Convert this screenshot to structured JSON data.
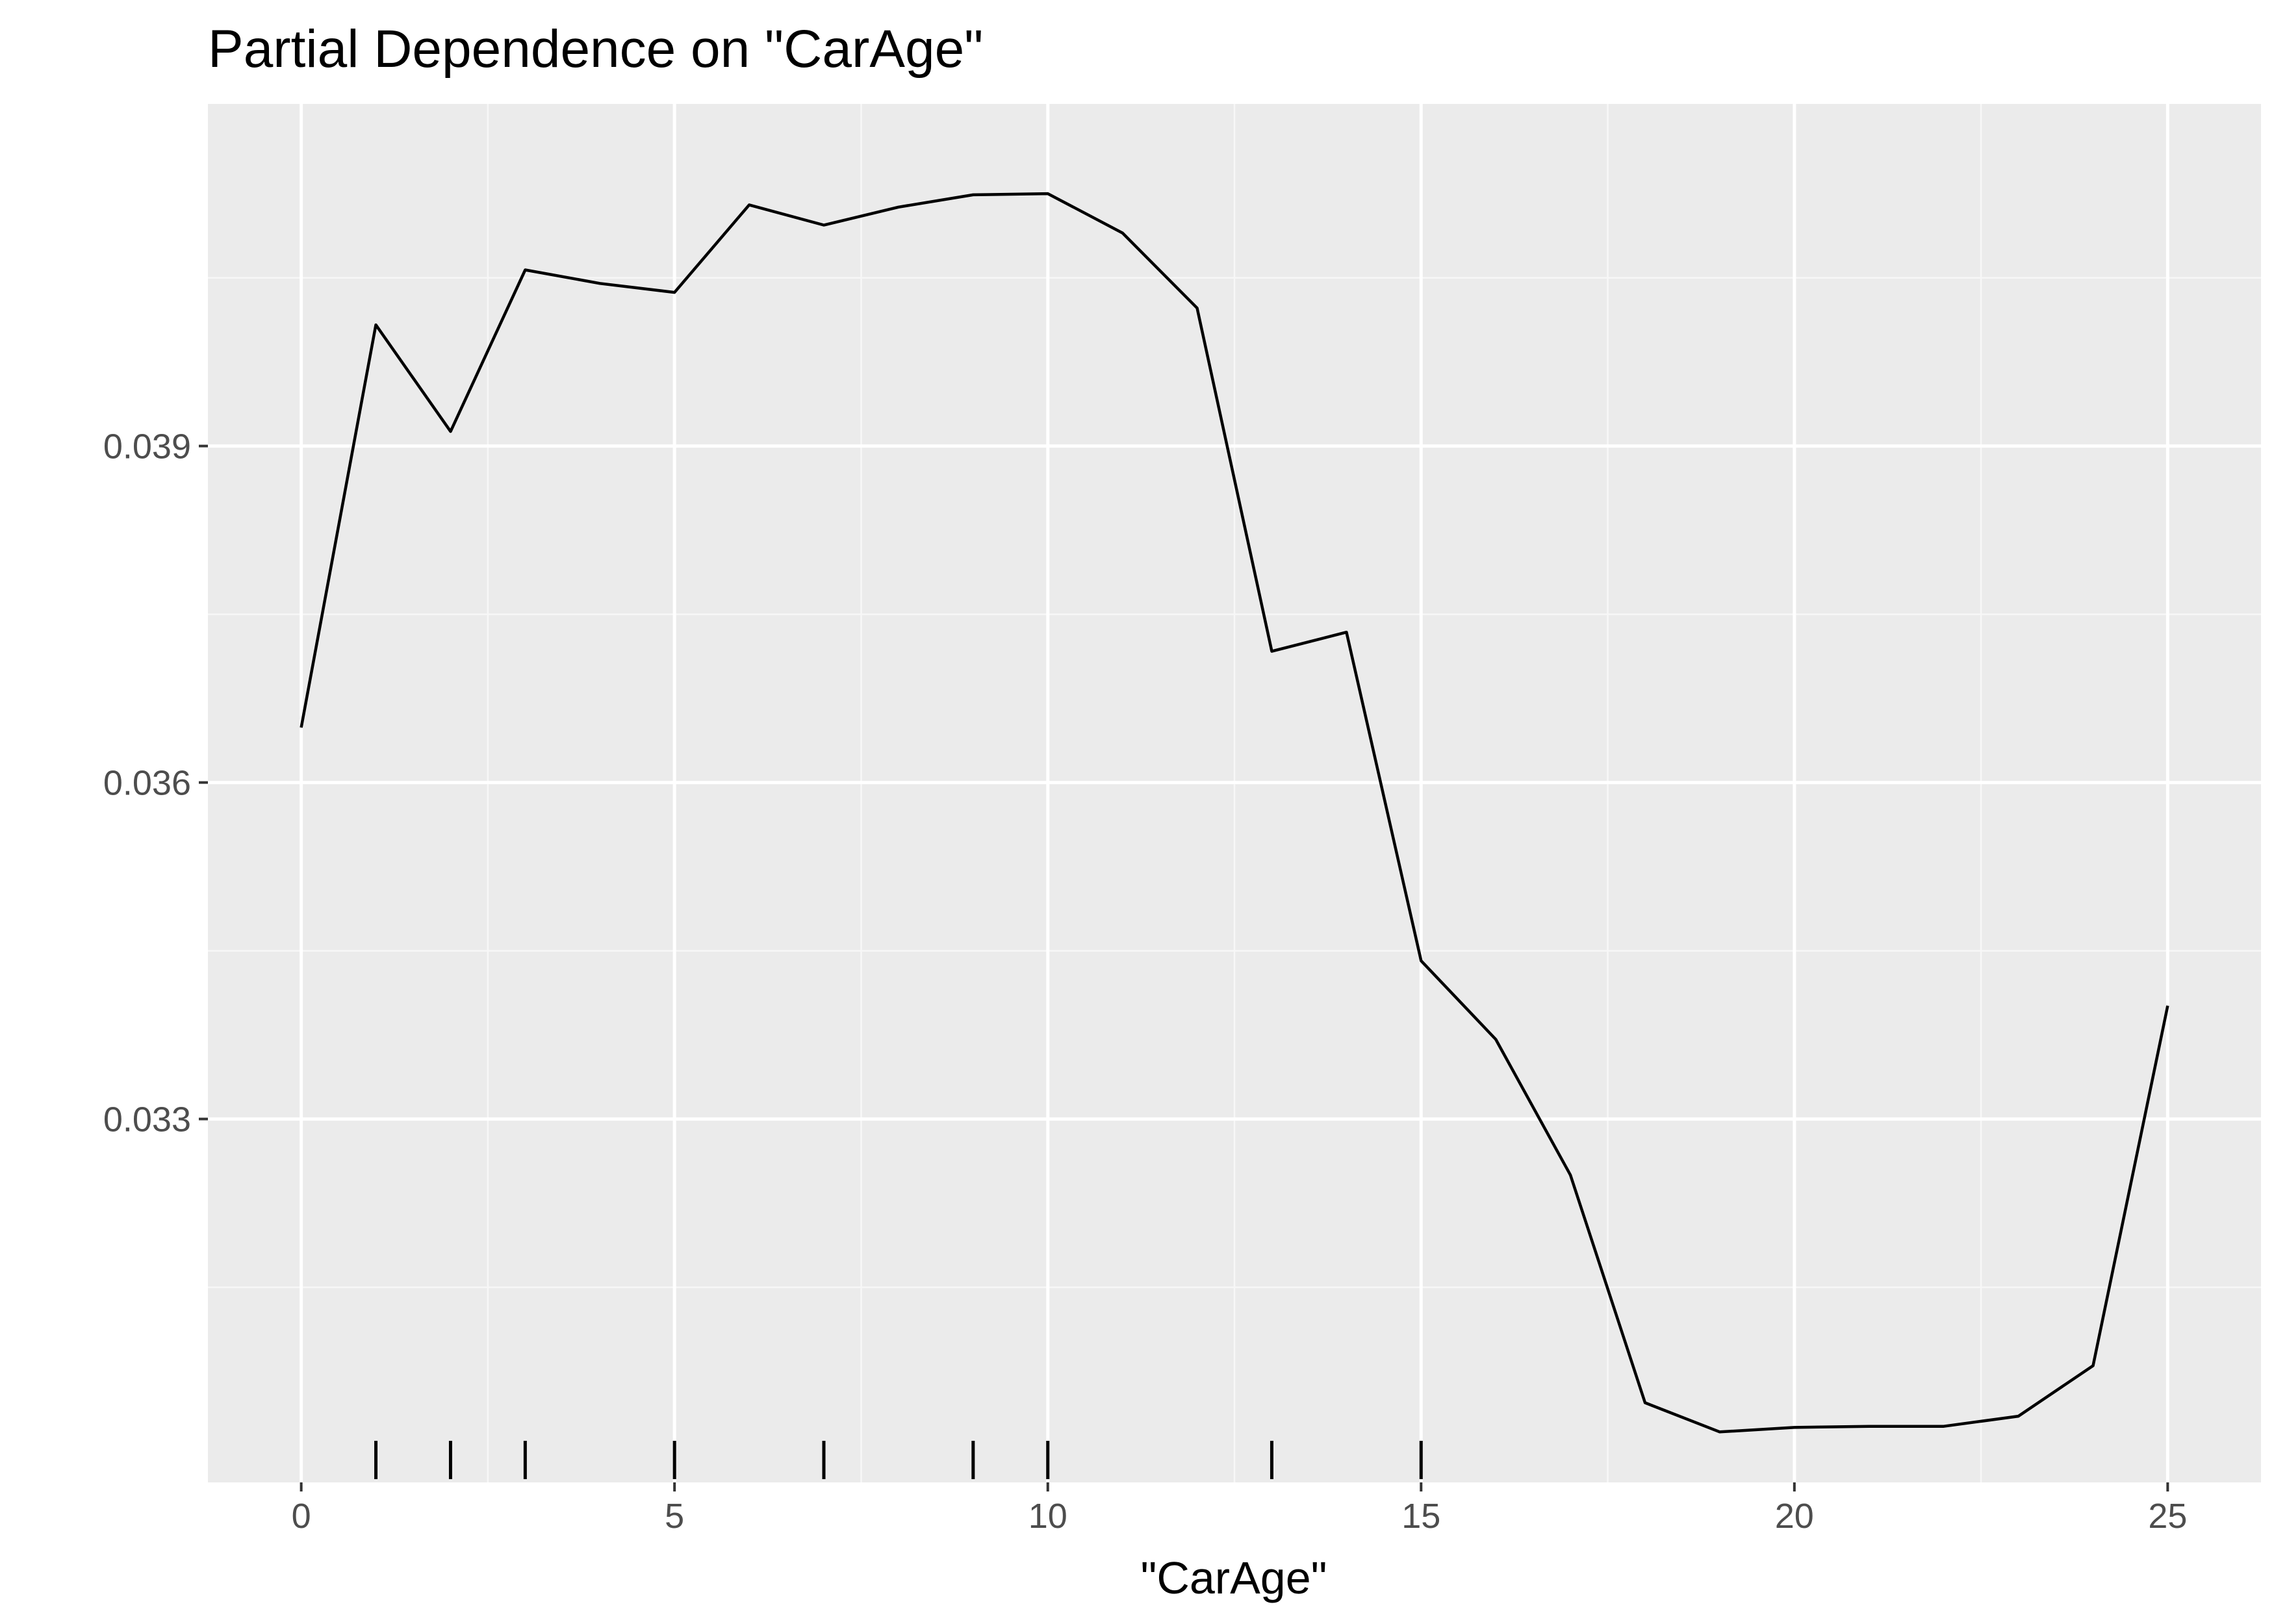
{
  "chart_data": {
    "type": "line",
    "title": "Partial Dependence on \"CarAge\"",
    "xlabel": "\"CarAge\"",
    "ylabel": "",
    "x": [
      0,
      1,
      2,
      3,
      4,
      5,
      6,
      7,
      8,
      9,
      10,
      11,
      12,
      13,
      14,
      15,
      16,
      17,
      18,
      19,
      20,
      21,
      22,
      23,
      24,
      25
    ],
    "y": [
      0.03649,
      0.04008,
      0.03913,
      0.04057,
      0.04045,
      0.04037,
      0.04115,
      0.04097,
      0.04113,
      0.04124,
      0.04125,
      0.0409,
      0.04023,
      0.03717,
      0.03734,
      0.03441,
      0.03371,
      0.0325,
      0.03047,
      0.03021,
      0.03025,
      0.03026,
      0.03026,
      0.03035,
      0.0308,
      0.03401
    ],
    "rug": [
      1,
      2,
      3,
      5,
      7,
      9,
      10,
      13,
      15
    ],
    "xlim": [
      -1.25,
      26.25
    ],
    "ylim": [
      0.02976,
      0.04205
    ],
    "x_ticks": [
      0,
      5,
      10,
      15,
      20,
      25
    ],
    "x_tick_labels": [
      "0",
      "5",
      "10",
      "15",
      "20",
      "25"
    ],
    "y_ticks": [
      0.033,
      0.036,
      0.039
    ],
    "y_tick_labels": [
      "0.033",
      "0.036",
      "0.039"
    ],
    "grid": true,
    "colors": {
      "panel_background": "#ebebeb",
      "grid_major": "#ffffff",
      "grid_minor": "#f7f7f7",
      "line": "#000000",
      "tick_text": "#4d4d4d"
    }
  }
}
